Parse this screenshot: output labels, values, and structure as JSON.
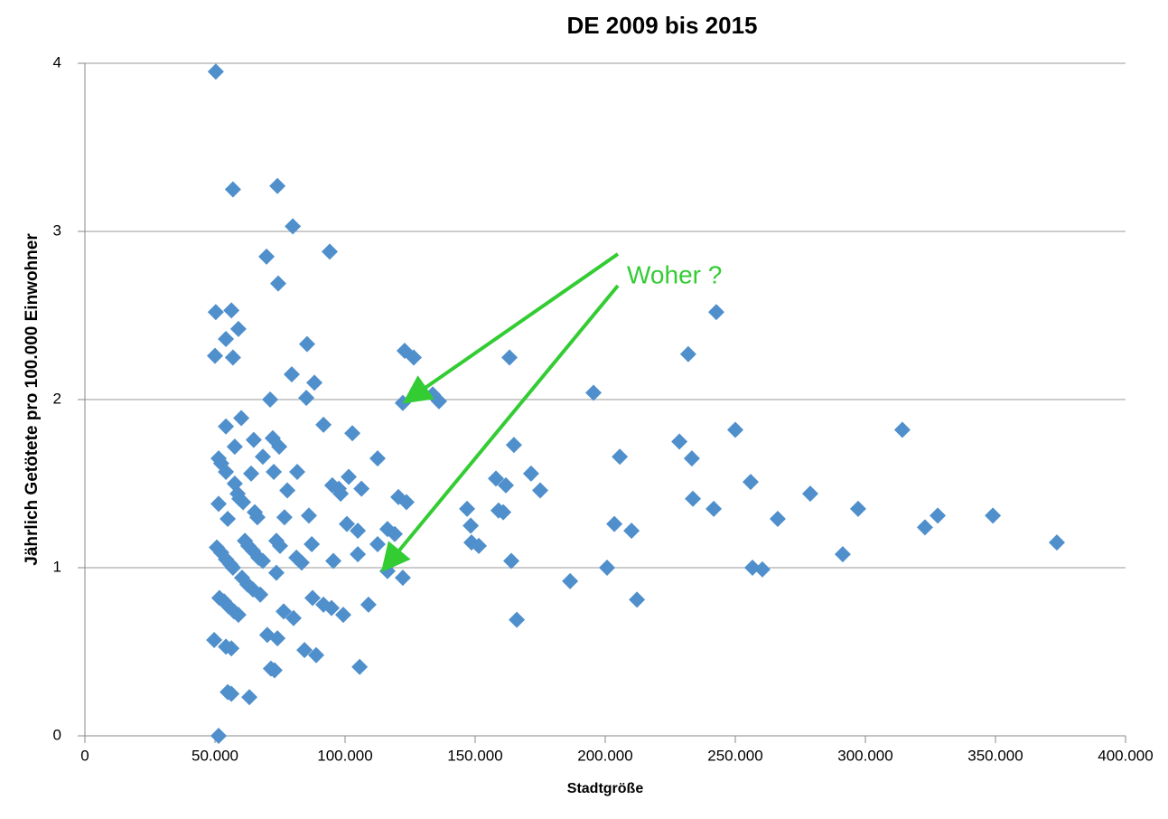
{
  "chart_data": {
    "type": "scatter",
    "title": "DE 2009 bis 2015",
    "xlabel": "Stadtgröße",
    "ylabel": "Jährlich Getötete pro 100.000 Einwohner",
    "annotations": [
      "Woher ?"
    ],
    "color": "#4f8fcc",
    "xlim": [
      0,
      400000
    ],
    "ylim": [
      0,
      4
    ],
    "xticks": [
      0,
      {
        "value": 50000,
        "label": "50.000"
      },
      {
        "value": 100000,
        "label": "100.000"
      },
      {
        "value": 150000,
        "label": "150.000"
      },
      {
        "value": 200000,
        "label": "200.000"
      },
      {
        "value": 250000,
        "label": "250.000"
      },
      {
        "value": 300000,
        "label": "300.000"
      },
      {
        "value": 350000,
        "label": "350.000"
      },
      {
        "value": 400000,
        "label": "400.000"
      }
    ],
    "yticks": [
      0,
      1,
      2,
      3,
      4
    ],
    "grid": true,
    "x": [
      50300,
      56900,
      74000,
      79900,
      94100,
      69800,
      74300,
      50300,
      56300,
      59000,
      54200,
      85400,
      50000,
      56900,
      79500,
      88200,
      71200,
      85100,
      60100,
      54200,
      91700,
      72200,
      64900,
      102800,
      74700,
      57600,
      68400,
      51400,
      52400,
      112500,
      54200,
      63900,
      72600,
      81600,
      101400,
      95100,
      97600,
      98300,
      57600,
      58700,
      59400,
      60800,
      51400,
      106300,
      77800,
      65300,
      66300,
      54900,
      76700,
      86100,
      100700,
      104900,
      120500,
      123600,
      116300,
      119100,
      112500,
      61500,
      62800,
      64600,
      66700,
      68400,
      73600,
      75000,
      87200,
      81300,
      83300,
      50700,
      52400,
      54200,
      55900,
      56900,
      104900,
      95500,
      73600,
      116300,
      60400,
      62500,
      64600,
      67400,
      122200,
      51700,
      53500,
      55200,
      57300,
      59000,
      87500,
      91700,
      94800,
      109000,
      76400,
      80200,
      99300,
      49700,
      70100,
      74000,
      54200,
      56300,
      84400,
      88900,
      71500,
      72900,
      105600,
      54900,
      56300,
      63200,
      51400,
      122900,
      126400,
      122200,
      133700,
      136100,
      163200,
      164900,
      158000,
      161800,
      159000,
      160800,
      146900,
      148300,
      148600,
      151400,
      163900,
      166000,
      171500,
      175000,
      186500,
      195500,
      205600,
      203500,
      210100,
      200700,
      212200,
      228500,
      231900,
      233300,
      233700,
      242700,
      241700,
      250000,
      255900,
      256600,
      260400,
      266300,
      278800,
      297200,
      291300,
      314200,
      322900,
      327800,
      349000,
      373600
    ],
    "values": [
      3.95,
      3.25,
      3.27,
      3.03,
      2.88,
      2.85,
      2.69,
      2.52,
      2.53,
      2.42,
      2.36,
      2.33,
      2.26,
      2.25,
      2.15,
      2.1,
      2.0,
      2.01,
      1.89,
      1.84,
      1.85,
      1.77,
      1.76,
      1.8,
      1.72,
      1.72,
      1.66,
      1.65,
      1.62,
      1.65,
      1.57,
      1.56,
      1.57,
      1.57,
      1.54,
      1.49,
      1.47,
      1.44,
      1.5,
      1.44,
      1.41,
      1.39,
      1.38,
      1.47,
      1.46,
      1.33,
      1.3,
      1.29,
      1.3,
      1.31,
      1.26,
      1.22,
      1.42,
      1.39,
      1.23,
      1.2,
      1.14,
      1.16,
      1.13,
      1.1,
      1.06,
      1.04,
      1.16,
      1.13,
      1.14,
      1.06,
      1.03,
      1.12,
      1.09,
      1.05,
      1.02,
      1.0,
      1.08,
      1.04,
      0.97,
      0.98,
      0.94,
      0.9,
      0.87,
      0.84,
      0.94,
      0.82,
      0.8,
      0.77,
      0.74,
      0.72,
      0.82,
      0.78,
      0.76,
      0.78,
      0.74,
      0.7,
      0.72,
      0.57,
      0.6,
      0.58,
      0.53,
      0.52,
      0.51,
      0.48,
      0.4,
      0.39,
      0.41,
      0.26,
      0.25,
      0.23,
      0.0,
      2.29,
      2.25,
      1.98,
      2.03,
      1.99,
      2.25,
      1.73,
      1.53,
      1.49,
      1.34,
      1.33,
      1.35,
      1.25,
      1.15,
      1.13,
      1.04,
      0.69,
      1.56,
      1.46,
      0.92,
      2.04,
      1.66,
      1.26,
      1.22,
      1.0,
      0.81,
      1.75,
      2.27,
      1.65,
      1.41,
      2.52,
      1.35,
      1.82,
      1.51,
      1.0,
      0.99,
      1.29,
      1.44,
      1.35,
      1.08,
      1.82,
      1.24,
      1.31,
      1.31,
      1.15
    ]
  }
}
